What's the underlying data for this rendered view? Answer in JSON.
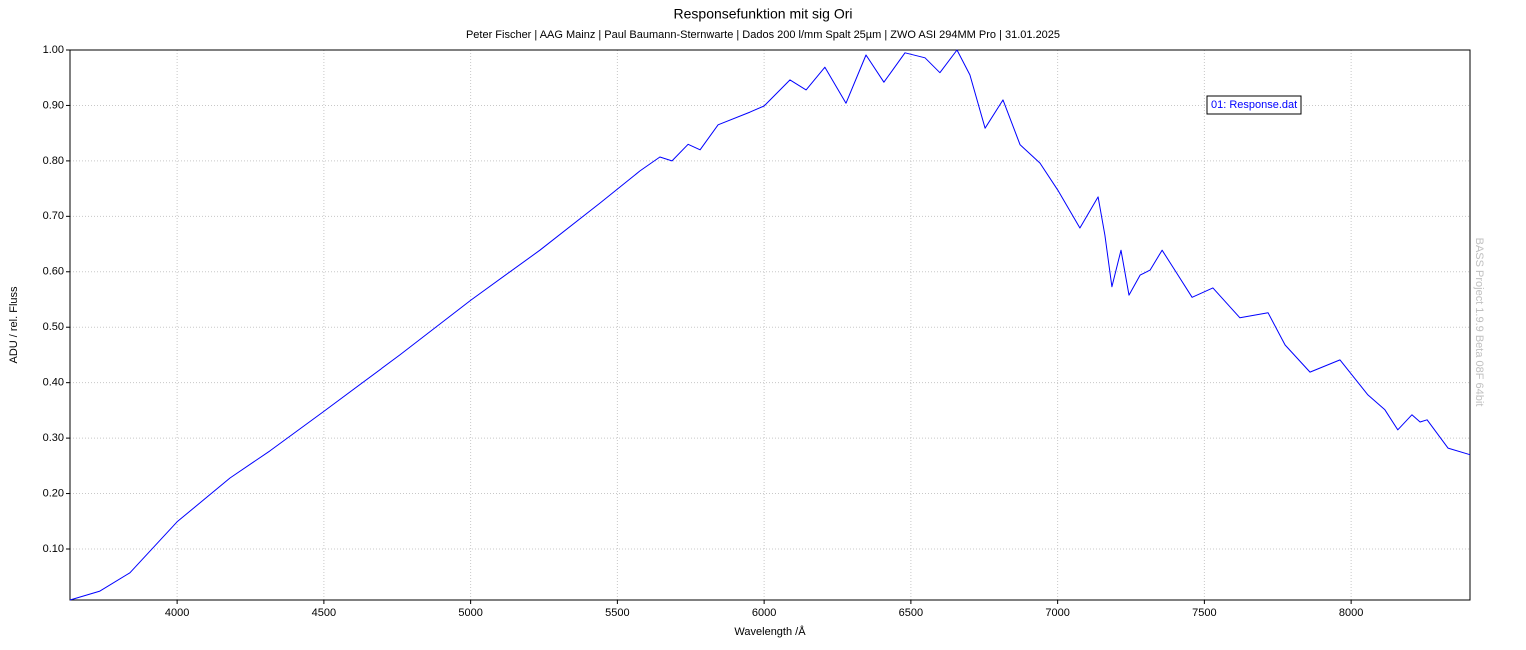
{
  "chart_data": {
    "type": "line",
    "title": "Responsefunktion mit sig Ori",
    "subtitle": "Peter Fischer | AAG Mainz | Paul Baumann-Sternwarte | Dados 200 l/mm Spalt 25µm | ZWO ASI 294MM Pro | 31.01.2025",
    "x_label": "Wavelength /Å",
    "y_label": "ADU / rel. Fluss",
    "watermark": "BASS Project 1.9.9 Beta 08F 64bit",
    "xlim": [
      3635,
      8405
    ],
    "ylim": [
      0.008,
      1.0
    ],
    "xticks": [
      4000,
      4500,
      5000,
      5500,
      6000,
      6500,
      7000,
      7500,
      8000
    ],
    "yticks": [
      {
        "value": 0.1,
        "label": "0.10"
      },
      {
        "value": 0.2,
        "label": "0.20"
      },
      {
        "value": 0.3,
        "label": "0.30"
      },
      {
        "value": 0.4,
        "label": "0.40"
      },
      {
        "value": 0.5,
        "label": "0.50"
      },
      {
        "value": 0.6,
        "label": "0.60"
      },
      {
        "value": 0.7,
        "label": "0.70"
      },
      {
        "value": 0.8,
        "label": "0.80"
      },
      {
        "value": 0.9,
        "label": "0.90"
      },
      {
        "value": 1.0,
        "label": "1.00"
      }
    ],
    "grid": true,
    "legend": "upper right",
    "series": [
      {
        "name": "01: Response.dat",
        "color": "#0000ff",
        "x": [
          3635,
          3737,
          3839,
          4000,
          4180,
          4316,
          4497,
          4759,
          5001,
          5236,
          5441,
          5577,
          5645,
          5686,
          5741,
          5782,
          5843,
          5952,
          6000,
          6088,
          6143,
          6207,
          6279,
          6347,
          6408,
          6480,
          6548,
          6599,
          6657,
          6701,
          6753,
          6814,
          6872,
          6940,
          7001,
          7076,
          7138,
          7161,
          7185,
          7216,
          7243,
          7281,
          7315,
          7356,
          7410,
          7458,
          7529,
          7621,
          7717,
          7775,
          7860,
          7962,
          8057,
          8115,
          8159,
          8207,
          8235,
          8259,
          8330,
          8405
        ],
        "values": [
          0.008,
          0.024,
          0.057,
          0.149,
          0.228,
          0.277,
          0.347,
          0.45,
          0.549,
          0.639,
          0.724,
          0.782,
          0.807,
          0.8,
          0.83,
          0.82,
          0.865,
          0.888,
          0.899,
          0.946,
          0.928,
          0.969,
          0.904,
          0.991,
          0.942,
          0.995,
          0.986,
          0.959,
          1.0,
          0.955,
          0.859,
          0.91,
          0.829,
          0.796,
          0.747,
          0.679,
          0.735,
          0.666,
          0.573,
          0.639,
          0.558,
          0.594,
          0.603,
          0.639,
          0.594,
          0.554,
          0.571,
          0.517,
          0.526,
          0.468,
          0.419,
          0.441,
          0.378,
          0.351,
          0.315,
          0.342,
          0.329,
          0.333,
          0.282,
          0.27
        ]
      }
    ]
  }
}
